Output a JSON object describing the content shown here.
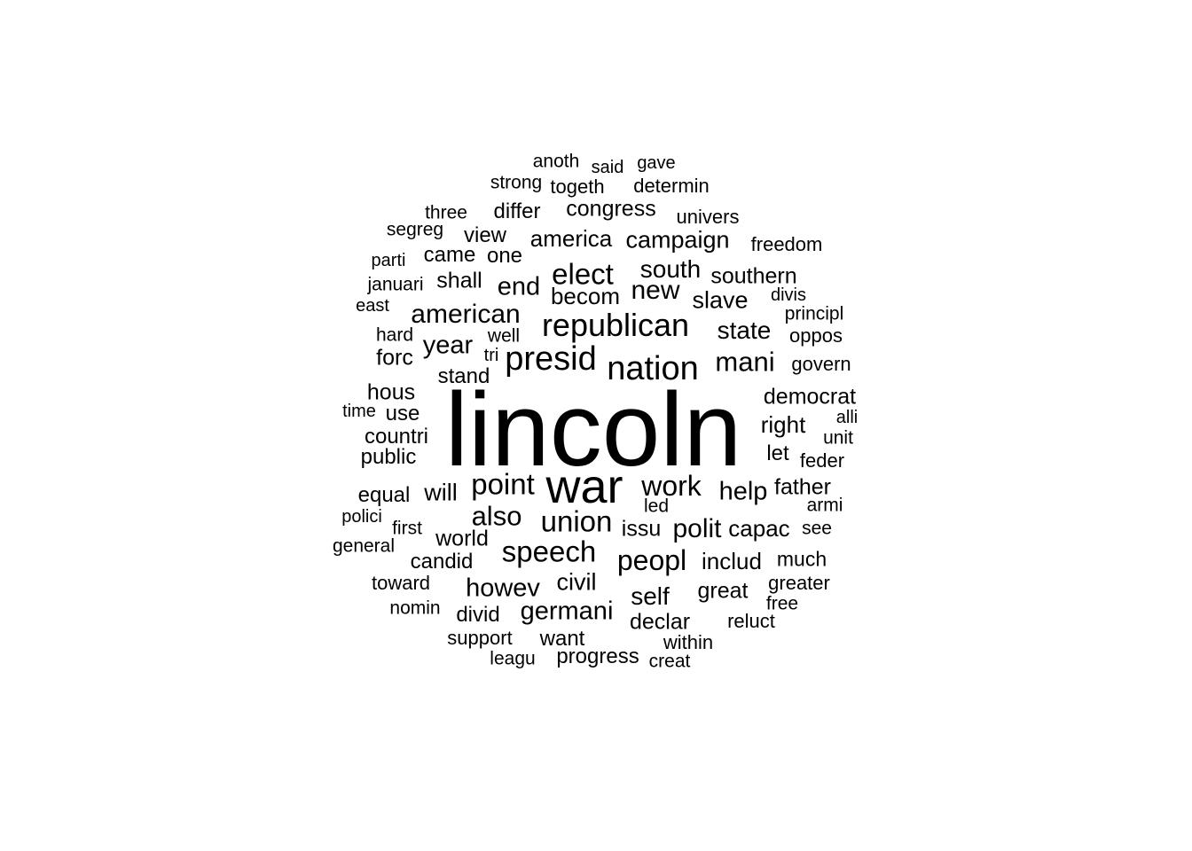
{
  "word_cloud": {
    "text_color": "#000000",
    "background": "#ffffff",
    "words": [
      {
        "text": "lincoln",
        "weight": 1.0
      },
      {
        "text": "war",
        "weight": 0.46
      },
      {
        "text": "nation",
        "weight": 0.32
      },
      {
        "text": "presid",
        "weight": 0.32
      },
      {
        "text": "republican",
        "weight": 0.3
      },
      {
        "text": "elect",
        "weight": 0.28
      },
      {
        "text": "point",
        "weight": 0.28
      },
      {
        "text": "speech",
        "weight": 0.28
      },
      {
        "text": "union",
        "weight": 0.28
      },
      {
        "text": "peopl",
        "weight": 0.27
      },
      {
        "text": "work",
        "weight": 0.27
      },
      {
        "text": "mani",
        "weight": 0.26
      },
      {
        "text": "also",
        "weight": 0.26
      },
      {
        "text": "new",
        "weight": 0.25
      },
      {
        "text": "american",
        "weight": 0.25
      },
      {
        "text": "polit",
        "weight": 0.25
      },
      {
        "text": "end",
        "weight": 0.24
      },
      {
        "text": "howev",
        "weight": 0.24
      },
      {
        "text": "germani",
        "weight": 0.24
      },
      {
        "text": "year",
        "weight": 0.24
      },
      {
        "text": "help",
        "weight": 0.24
      },
      {
        "text": "south",
        "weight": 0.23
      },
      {
        "text": "state",
        "weight": 0.23
      },
      {
        "text": "self",
        "weight": 0.23
      },
      {
        "text": "will",
        "weight": 0.22
      },
      {
        "text": "campaign",
        "weight": 0.22
      },
      {
        "text": "slave",
        "weight": 0.22
      },
      {
        "text": "civil",
        "weight": 0.22
      },
      {
        "text": "right",
        "weight": 0.21
      },
      {
        "text": "capac",
        "weight": 0.21
      },
      {
        "text": "includ",
        "weight": 0.21
      },
      {
        "text": "becom",
        "weight": 0.21
      },
      {
        "text": "america",
        "weight": 0.21
      },
      {
        "text": "issu",
        "weight": 0.2
      },
      {
        "text": "great",
        "weight": 0.2
      },
      {
        "text": "democrat",
        "weight": 0.2
      },
      {
        "text": "world",
        "weight": 0.2
      },
      {
        "text": "congress",
        "weight": 0.2
      },
      {
        "text": "southern",
        "weight": 0.2
      },
      {
        "text": "shall",
        "weight": 0.2
      },
      {
        "text": "forc",
        "weight": 0.2
      },
      {
        "text": "hous",
        "weight": 0.2
      },
      {
        "text": "father",
        "weight": 0.2
      },
      {
        "text": "declar",
        "weight": 0.2
      },
      {
        "text": "let",
        "weight": 0.19
      },
      {
        "text": "candid",
        "weight": 0.19
      },
      {
        "text": "stand",
        "weight": 0.19
      },
      {
        "text": "differ",
        "weight": 0.19
      },
      {
        "text": "countri",
        "weight": 0.19
      },
      {
        "text": "public",
        "weight": 0.19
      },
      {
        "text": "equal",
        "weight": 0.19
      },
      {
        "text": "progress",
        "weight": 0.19
      },
      {
        "text": "one",
        "weight": 0.19
      },
      {
        "text": "came",
        "weight": 0.19
      },
      {
        "text": "view",
        "weight": 0.19
      },
      {
        "text": "use",
        "weight": 0.19
      },
      {
        "text": "want",
        "weight": 0.19
      },
      {
        "text": "divid",
        "weight": 0.19
      },
      {
        "text": "much",
        "weight": 0.18
      },
      {
        "text": "greater",
        "weight": 0.17
      },
      {
        "text": "feder",
        "weight": 0.17
      },
      {
        "text": "govern",
        "weight": 0.17
      },
      {
        "text": "oppos",
        "weight": 0.17
      },
      {
        "text": "within",
        "weight": 0.17
      },
      {
        "text": "support",
        "weight": 0.17
      },
      {
        "text": "toward",
        "weight": 0.17
      },
      {
        "text": "determin",
        "weight": 0.17
      },
      {
        "text": "togeth",
        "weight": 0.17
      },
      {
        "text": "univers",
        "weight": 0.17
      },
      {
        "text": "freedom",
        "weight": 0.17
      },
      {
        "text": "reluct",
        "weight": 0.17
      },
      {
        "text": "principl",
        "weight": 0.16
      },
      {
        "text": "anoth",
        "weight": 0.16
      },
      {
        "text": "strong",
        "weight": 0.16
      },
      {
        "text": "three",
        "weight": 0.16
      },
      {
        "text": "segreg",
        "weight": 0.16
      },
      {
        "text": "januari",
        "weight": 0.16
      },
      {
        "text": "first",
        "weight": 0.16
      },
      {
        "text": "see",
        "weight": 0.16
      },
      {
        "text": "unit",
        "weight": 0.16
      },
      {
        "text": "armi",
        "weight": 0.16
      },
      {
        "text": "leagu",
        "weight": 0.16
      },
      {
        "text": "well",
        "weight": 0.16
      },
      {
        "text": "hard",
        "weight": 0.16
      },
      {
        "text": "general",
        "weight": 0.16
      },
      {
        "text": "nomin",
        "weight": 0.16
      },
      {
        "text": "free",
        "weight": 0.16
      },
      {
        "text": "led",
        "weight": 0.16
      },
      {
        "text": "creat",
        "weight": 0.16
      },
      {
        "text": "gave",
        "weight": 0.15
      },
      {
        "text": "said",
        "weight": 0.15
      },
      {
        "text": "parti",
        "weight": 0.15
      },
      {
        "text": "east",
        "weight": 0.15
      },
      {
        "text": "time",
        "weight": 0.15
      },
      {
        "text": "alli",
        "weight": 0.15
      },
      {
        "text": "divis",
        "weight": 0.15
      },
      {
        "text": "polici",
        "weight": 0.15
      },
      {
        "text": "tri",
        "weight": 0.15
      }
    ]
  }
}
